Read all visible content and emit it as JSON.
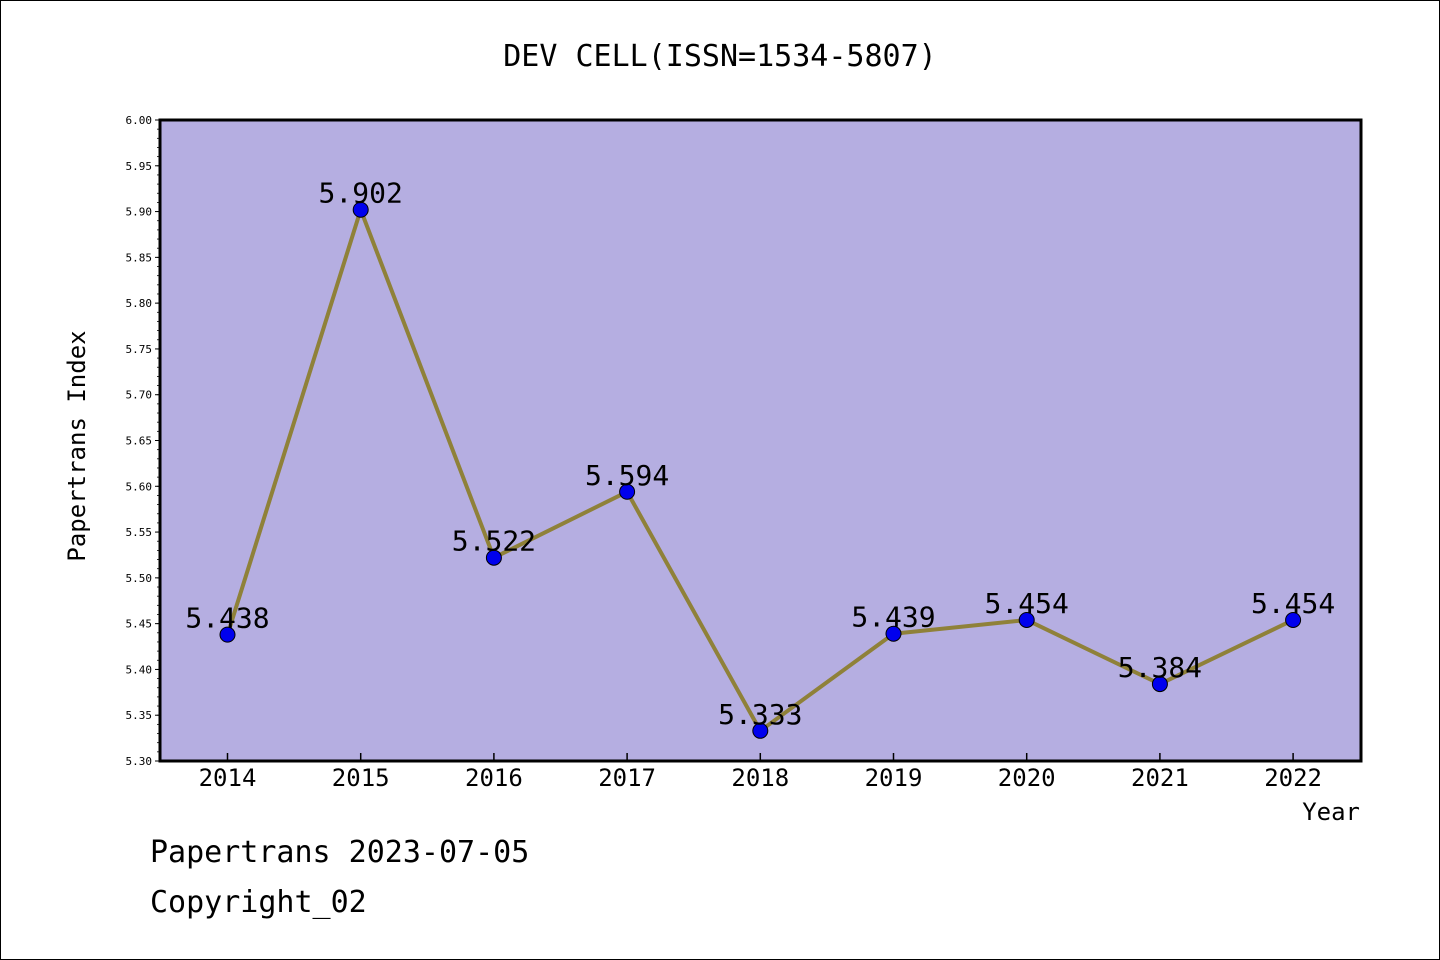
{
  "chart_data": {
    "type": "line",
    "title": "DEV CELL(ISSN=1534-5807)",
    "xlabel": "Year",
    "ylabel": "Papertrans Index",
    "categories": [
      "2014",
      "2015",
      "2016",
      "2017",
      "2018",
      "2019",
      "2020",
      "2021",
      "2022"
    ],
    "values": [
      5.438,
      5.902,
      5.522,
      5.594,
      5.333,
      5.439,
      5.454,
      5.384,
      5.454
    ],
    "data_labels": [
      "5.438",
      "5.902",
      "5.522",
      "5.594",
      "5.333",
      "5.439",
      "5.454",
      "5.384",
      "5.454"
    ],
    "ylim": [
      5.3,
      6.0
    ],
    "y_ticks": [
      "5.30",
      "5.35",
      "5.40",
      "5.45",
      "5.50",
      "5.55",
      "5.60",
      "5.65",
      "5.70",
      "5.75",
      "5.80",
      "5.85",
      "5.90",
      "5.95",
      "6.00"
    ],
    "grid": false,
    "colors": {
      "plot_background": "#b5aee1",
      "line": "#8f8139",
      "marker": "#0000ee"
    }
  },
  "footer": {
    "date_line": "Papertrans 2023-07-05",
    "copyright": "Copyright_02"
  }
}
